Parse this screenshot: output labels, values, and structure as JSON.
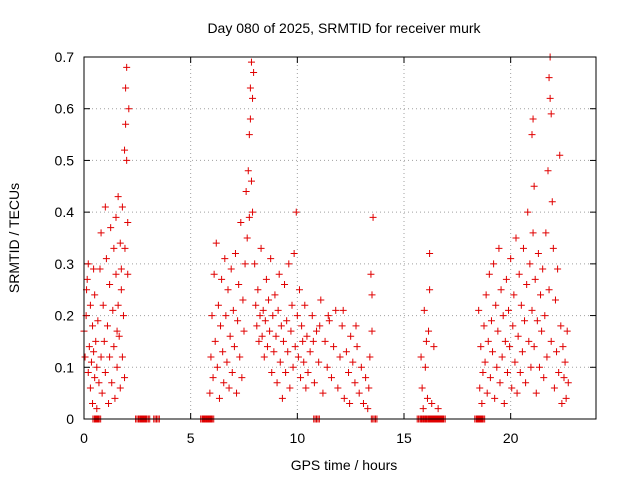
{
  "chart_data": {
    "type": "scatter",
    "title": "Day 080 of 2025, SRMTID for receiver murk",
    "xlabel": "GPS time / hours",
    "ylabel": "SRMTID / TECUs",
    "xlim": [
      0,
      24
    ],
    "ylim": [
      0,
      0.7
    ],
    "x_ticks": [
      0,
      5,
      10,
      15,
      20
    ],
    "y_ticks": [
      0,
      0.1,
      0.2,
      0.3,
      0.4,
      0.5,
      0.6,
      0.7
    ],
    "x_tick_labels": [
      "0",
      "5",
      "10",
      "15",
      "20"
    ],
    "y_tick_labels": [
      "0",
      "0.1",
      "0.2",
      "0.3",
      "0.4",
      "0.5",
      "0.6",
      "0.7"
    ],
    "grid": true,
    "marker": "+",
    "color": "#e00000",
    "series": [
      {
        "name": "SRMTID",
        "points": [
          [
            0.0,
            0.17
          ],
          [
            0.05,
            0.12
          ],
          [
            0.1,
            0.2
          ],
          [
            0.15,
            0.27
          ],
          [
            0.2,
            0.09
          ],
          [
            0.2,
            0.3
          ],
          [
            0.25,
            0.14
          ],
          [
            0.3,
            0.06
          ],
          [
            0.3,
            0.22
          ],
          [
            0.35,
            0.11
          ],
          [
            0.4,
            0.18
          ],
          [
            0.4,
            0.03
          ],
          [
            0.45,
            0.13
          ],
          [
            0.5,
            0.08
          ],
          [
            0.5,
            0.24
          ],
          [
            0.55,
            0.15
          ],
          [
            0.6,
            0.1
          ],
          [
            0.6,
            0.02
          ],
          [
            0.65,
            0.19
          ],
          [
            0.7,
            0.07
          ],
          [
            0.75,
            0.29
          ],
          [
            0.8,
            0.12
          ],
          [
            0.8,
            0.36
          ],
          [
            0.85,
            0.05
          ],
          [
            0.9,
            0.22
          ],
          [
            0.95,
            0.15
          ],
          [
            1.0,
            0.41
          ],
          [
            1.0,
            0.09
          ],
          [
            1.05,
            0.31
          ],
          [
            1.1,
            0.18
          ],
          [
            1.15,
            0.03
          ],
          [
            1.2,
            0.26
          ],
          [
            1.2,
            0.12
          ],
          [
            1.25,
            0.37
          ],
          [
            1.3,
            0.07
          ],
          [
            1.35,
            0.21
          ],
          [
            1.4,
            0.33
          ],
          [
            1.4,
            0.14
          ],
          [
            1.45,
            0.04
          ],
          [
            1.5,
            0.28
          ],
          [
            1.5,
            0.39
          ],
          [
            1.55,
            0.1
          ],
          [
            1.6,
            0.22
          ],
          [
            1.6,
            0.43
          ],
          [
            1.65,
            0.16
          ],
          [
            1.7,
            0.06
          ],
          [
            1.7,
            0.34
          ],
          [
            1.75,
            0.25
          ],
          [
            1.8,
            0.12
          ],
          [
            1.8,
            0.41
          ],
          [
            1.85,
            0.2
          ],
          [
            1.9,
            0.08
          ],
          [
            1.9,
            0.52
          ],
          [
            1.95,
            0.64
          ],
          [
            1.95,
            0.57
          ],
          [
            2.0,
            0.68
          ],
          [
            2.0,
            0.5
          ],
          [
            2.05,
            0.38
          ],
          [
            2.05,
            0.28
          ],
          [
            2.1,
            0.6
          ],
          [
            1.92,
            0.33
          ],
          [
            1.75,
            0.29
          ],
          [
            1.55,
            0.17
          ],
          [
            0.45,
            0.29
          ],
          [
            0.12,
            0.25
          ],
          [
            5.9,
            0.05
          ],
          [
            5.95,
            0.12
          ],
          [
            6.0,
            0.2
          ],
          [
            6.05,
            0.08
          ],
          [
            6.1,
            0.28
          ],
          [
            6.15,
            0.15
          ],
          [
            6.2,
            0.34
          ],
          [
            6.25,
            0.1
          ],
          [
            6.3,
            0.22
          ],
          [
            6.35,
            0.04
          ],
          [
            6.4,
            0.18
          ],
          [
            6.45,
            0.27
          ],
          [
            6.5,
            0.13
          ],
          [
            6.55,
            0.07
          ],
          [
            6.6,
            0.31
          ],
          [
            6.65,
            0.2
          ],
          [
            6.7,
            0.11
          ],
          [
            6.75,
            0.25
          ],
          [
            6.8,
            0.06
          ],
          [
            6.85,
            0.16
          ],
          [
            6.9,
            0.29
          ],
          [
            6.95,
            0.09
          ],
          [
            7.0,
            0.21
          ],
          [
            7.05,
            0.14
          ],
          [
            7.1,
            0.32
          ],
          [
            7.15,
            0.05
          ],
          [
            7.2,
            0.19
          ],
          [
            7.25,
            0.26
          ],
          [
            7.3,
            0.12
          ],
          [
            7.35,
            0.38
          ],
          [
            7.4,
            0.08
          ],
          [
            7.45,
            0.23
          ],
          [
            7.5,
            0.17
          ],
          [
            7.55,
            0.3
          ],
          [
            7.6,
            0.44
          ],
          [
            7.65,
            0.35
          ],
          [
            7.7,
            0.48
          ],
          [
            7.75,
            0.55
          ],
          [
            7.75,
            0.39
          ],
          [
            7.8,
            0.64
          ],
          [
            7.8,
            0.58
          ],
          [
            7.85,
            0.69
          ],
          [
            7.85,
            0.46
          ],
          [
            7.9,
            0.62
          ],
          [
            7.9,
            0.4
          ],
          [
            7.95,
            0.67
          ],
          [
            8.0,
            0.3
          ],
          [
            8.05,
            0.22
          ],
          [
            8.1,
            0.18
          ],
          [
            8.15,
            0.25
          ],
          [
            8.2,
            0.15
          ],
          [
            8.25,
            0.2
          ],
          [
            8.3,
            0.33
          ],
          [
            8.35,
            0.16
          ],
          [
            8.4,
            0.21
          ],
          [
            8.45,
            0.12
          ],
          [
            8.5,
            0.19
          ],
          [
            8.55,
            0.27
          ],
          [
            8.6,
            0.14
          ],
          [
            8.65,
            0.23
          ],
          [
            8.7,
            0.17
          ],
          [
            8.75,
            0.31
          ],
          [
            8.8,
            0.09
          ],
          [
            8.85,
            0.2
          ],
          [
            8.9,
            0.13
          ],
          [
            8.95,
            0.24
          ],
          [
            9.0,
            0.16
          ],
          [
            9.05,
            0.07
          ],
          [
            9.1,
            0.21
          ],
          [
            9.15,
            0.28
          ],
          [
            9.2,
            0.11
          ],
          [
            9.25,
            0.18
          ],
          [
            9.3,
            0.04
          ],
          [
            9.35,
            0.15
          ],
          [
            9.4,
            0.26
          ],
          [
            9.45,
            0.09
          ],
          [
            9.5,
            0.19
          ],
          [
            9.55,
            0.13
          ],
          [
            9.6,
            0.3
          ],
          [
            9.65,
            0.06
          ],
          [
            9.7,
            0.17
          ],
          [
            9.75,
            0.22
          ],
          [
            9.8,
            0.1
          ],
          [
            9.85,
            0.32
          ],
          [
            9.9,
            0.14
          ],
          [
            9.95,
            0.4
          ],
          [
            10.0,
            0.2
          ],
          [
            10.05,
            0.12
          ],
          [
            10.1,
            0.25
          ],
          [
            10.15,
            0.08
          ],
          [
            10.2,
            0.18
          ],
          [
            10.25,
            0.15
          ],
          [
            10.3,
            0.11
          ],
          [
            10.35,
            0.22
          ],
          [
            10.4,
            0.06
          ],
          [
            10.45,
            0.16
          ],
          [
            10.5,
            0.09
          ],
          [
            10.6,
            0.13
          ],
          [
            10.7,
            0.2
          ],
          [
            10.8,
            0.07
          ],
          [
            10.9,
            0.17
          ],
          [
            11.0,
            0.11
          ],
          [
            11.1,
            0.23
          ],
          [
            11.2,
            0.05
          ],
          [
            11.3,
            0.15
          ],
          [
            11.4,
            0.1
          ],
          [
            11.5,
            0.19
          ],
          [
            11.6,
            0.08
          ],
          [
            11.7,
            0.14
          ],
          [
            11.8,
            0.21
          ],
          [
            11.9,
            0.06
          ],
          [
            12.0,
            0.12
          ],
          [
            12.1,
            0.18
          ],
          [
            12.2,
            0.04
          ],
          [
            12.3,
            0.13
          ],
          [
            12.4,
            0.09
          ],
          [
            12.5,
            0.16
          ],
          [
            12.6,
            0.11
          ],
          [
            12.7,
            0.07
          ],
          [
            12.8,
            0.14
          ],
          [
            12.9,
            0.05
          ],
          [
            13.0,
            0.1
          ],
          [
            13.1,
            0.03
          ],
          [
            13.2,
            0.08
          ],
          [
            13.3,
            0.02
          ],
          [
            13.4,
            0.12
          ],
          [
            13.45,
            0.28
          ],
          [
            13.5,
            0.24
          ],
          [
            13.55,
            0.39
          ],
          [
            13.5,
            0.17
          ],
          [
            13.35,
            0.06
          ],
          [
            11.45,
            0.2
          ],
          [
            12.15,
            0.21
          ],
          [
            12.75,
            0.18
          ],
          [
            11.05,
            0.18
          ],
          [
            10.75,
            0.15
          ],
          [
            12.45,
            0.03
          ],
          [
            15.8,
            0.12
          ],
          [
            15.85,
            0.06
          ],
          [
            15.9,
            0.02
          ],
          [
            15.95,
            0.21
          ],
          [
            16.0,
            0.1
          ],
          [
            16.05,
            0.15
          ],
          [
            16.1,
            0.04
          ],
          [
            16.15,
            0.17
          ],
          [
            16.2,
            0.32
          ],
          [
            16.2,
            0.25
          ],
          [
            16.3,
            0.03
          ],
          [
            16.4,
            0.14
          ],
          [
            16.6,
            0.02
          ],
          [
            18.5,
            0.21
          ],
          [
            18.55,
            0.06
          ],
          [
            18.6,
            0.14
          ],
          [
            18.65,
            0.03
          ],
          [
            18.7,
            0.09
          ],
          [
            18.75,
            0.18
          ],
          [
            18.8,
            0.11
          ],
          [
            18.85,
            0.24
          ],
          [
            18.9,
            0.05
          ],
          [
            18.95,
            0.15
          ],
          [
            19.0,
            0.28
          ],
          [
            19.05,
            0.08
          ],
          [
            19.1,
            0.19
          ],
          [
            19.15,
            0.13
          ],
          [
            19.2,
            0.3
          ],
          [
            19.25,
            0.04
          ],
          [
            19.3,
            0.22
          ],
          [
            19.35,
            0.1
          ],
          [
            19.4,
            0.17
          ],
          [
            19.45,
            0.33
          ],
          [
            19.5,
            0.07
          ],
          [
            19.55,
            0.25
          ],
          [
            19.6,
            0.12
          ],
          [
            19.65,
            0.2
          ],
          [
            19.7,
            0.03
          ],
          [
            19.75,
            0.15
          ],
          [
            19.8,
            0.27
          ],
          [
            19.85,
            0.09
          ],
          [
            19.9,
            0.21
          ],
          [
            19.95,
            0.14
          ],
          [
            20.0,
            0.31
          ],
          [
            20.05,
            0.06
          ],
          [
            20.1,
            0.18
          ],
          [
            20.15,
            0.24
          ],
          [
            20.2,
            0.11
          ],
          [
            20.25,
            0.35
          ],
          [
            20.3,
            0.05
          ],
          [
            20.35,
            0.16
          ],
          [
            20.4,
            0.28
          ],
          [
            20.45,
            0.09
          ],
          [
            20.5,
            0.22
          ],
          [
            20.55,
            0.13
          ],
          [
            20.6,
            0.33
          ],
          [
            20.65,
            0.19
          ],
          [
            20.7,
            0.07
          ],
          [
            20.75,
            0.26
          ],
          [
            20.8,
            0.4
          ],
          [
            20.85,
            0.15
          ],
          [
            20.9,
            0.3
          ],
          [
            20.95,
            0.1
          ],
          [
            21.0,
            0.55
          ],
          [
            21.0,
            0.21
          ],
          [
            21.05,
            0.58
          ],
          [
            21.05,
            0.36
          ],
          [
            21.1,
            0.45
          ],
          [
            21.1,
            0.14
          ],
          [
            21.15,
            0.27
          ],
          [
            21.2,
            0.05
          ],
          [
            21.25,
            0.19
          ],
          [
            21.3,
            0.32
          ],
          [
            21.35,
            0.1
          ],
          [
            21.4,
            0.24
          ],
          [
            21.45,
            0.17
          ],
          [
            21.5,
            0.29
          ],
          [
            21.55,
            0.08
          ],
          [
            21.6,
            0.2
          ],
          [
            21.65,
            0.36
          ],
          [
            21.7,
            0.12
          ],
          [
            21.75,
            0.48
          ],
          [
            21.8,
            0.25
          ],
          [
            21.8,
            0.66
          ],
          [
            21.85,
            0.62
          ],
          [
            21.85,
            0.7
          ],
          [
            21.9,
            0.59
          ],
          [
            21.9,
            0.15
          ],
          [
            21.95,
            0.42
          ],
          [
            22.0,
            0.33
          ],
          [
            22.05,
            0.06
          ],
          [
            22.1,
            0.23
          ],
          [
            22.15,
            0.13
          ],
          [
            22.2,
            0.29
          ],
          [
            22.25,
            0.09
          ],
          [
            22.3,
            0.51
          ],
          [
            22.35,
            0.18
          ],
          [
            22.4,
            0.03
          ],
          [
            22.45,
            0.14
          ],
          [
            22.5,
            0.08
          ],
          [
            22.55,
            0.11
          ],
          [
            22.6,
            0.04
          ],
          [
            22.65,
            0.17
          ],
          [
            22.7,
            0.07
          ]
        ]
      }
    ],
    "zero_markers_x": [
      0.55,
      0.65,
      2.55,
      2.7,
      2.8,
      2.95,
      3.4,
      5.6,
      5.7,
      5.85,
      5.95,
      10.9,
      13.6,
      15.75,
      15.9,
      16.05,
      16.2,
      16.3,
      16.4,
      16.5,
      16.6,
      16.7,
      16.8,
      18.45,
      18.55,
      18.65
    ]
  }
}
